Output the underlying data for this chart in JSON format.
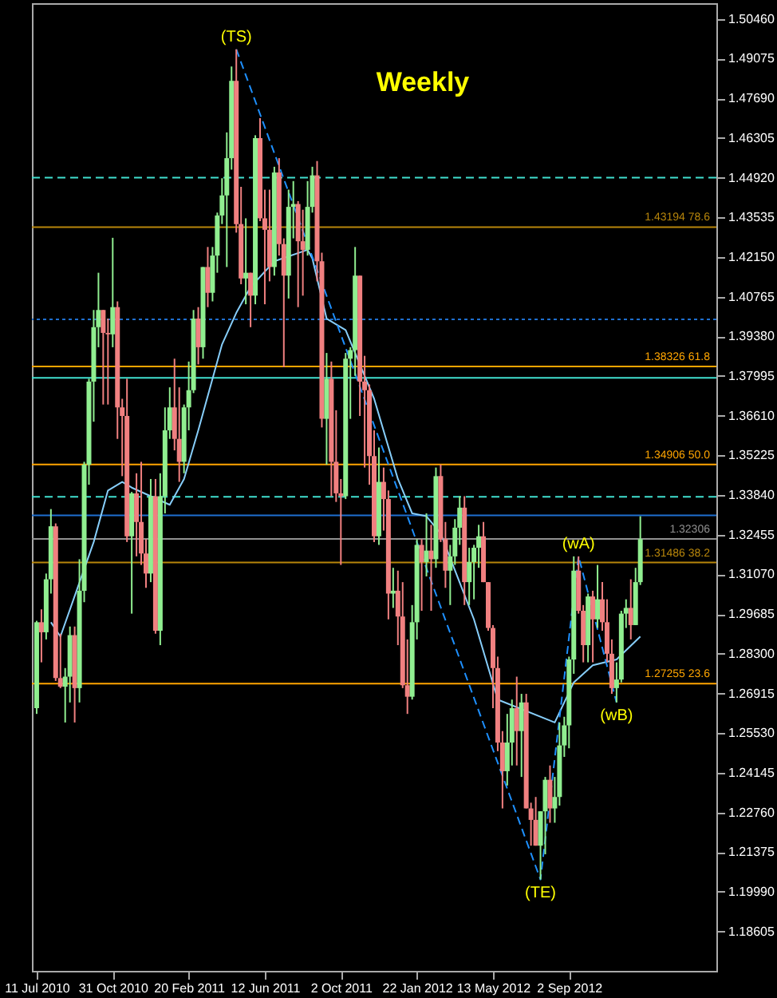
{
  "chart_data": {
    "type": "candlestick",
    "annotations": [
      "Weekly",
      {
        "text": "(TS)",
        "x": "2011-05-01",
        "y": 1.494
      },
      {
        "text": "(TE)",
        "x": "2012-07-22",
        "y": 1.2042
      },
      {
        "text": "(wA)",
        "x": "2012-09-16",
        "y": 1.317
      },
      {
        "text": "(wB)",
        "x": "2012-11-11",
        "y": 1.266
      }
    ],
    "x": [
      "2010-07-11",
      "2010-07-18",
      "2010-07-25",
      "2010-08-01",
      "2010-08-08",
      "2010-08-15",
      "2010-08-22",
      "2010-08-29",
      "2010-09-05",
      "2010-09-12",
      "2010-09-19",
      "2010-09-26",
      "2010-10-03",
      "2010-10-10",
      "2010-10-17",
      "2010-10-24",
      "2010-10-31",
      "2010-11-07",
      "2010-11-14",
      "2010-11-21",
      "2010-11-28",
      "2010-12-05",
      "2010-12-12",
      "2010-12-19",
      "2010-12-26",
      "2011-01-02",
      "2011-01-09",
      "2011-01-16",
      "2011-01-23",
      "2011-01-30",
      "2011-02-06",
      "2011-02-13",
      "2011-02-20",
      "2011-02-27",
      "2011-03-06",
      "2011-03-13",
      "2011-03-20",
      "2011-03-27",
      "2011-04-03",
      "2011-04-10",
      "2011-04-17",
      "2011-04-24",
      "2011-05-01",
      "2011-05-08",
      "2011-05-15",
      "2011-05-22",
      "2011-05-29",
      "2011-06-05",
      "2011-06-12",
      "2011-06-19",
      "2011-06-26",
      "2011-07-03",
      "2011-07-10",
      "2011-07-17",
      "2011-07-24",
      "2011-07-31",
      "2011-08-07",
      "2011-08-14",
      "2011-08-21",
      "2011-08-28",
      "2011-09-04",
      "2011-09-11",
      "2011-09-18",
      "2011-09-25",
      "2011-10-02",
      "2011-10-09",
      "2011-10-16",
      "2011-10-23",
      "2011-10-30",
      "2011-11-06",
      "2011-11-13",
      "2011-11-20",
      "2011-11-27",
      "2011-12-04",
      "2011-12-11",
      "2011-12-18",
      "2011-12-25",
      "2012-01-01",
      "2012-01-08",
      "2012-01-15",
      "2012-01-22",
      "2012-01-29",
      "2012-02-05",
      "2012-02-12",
      "2012-02-19",
      "2012-02-26",
      "2012-03-04",
      "2012-03-11",
      "2012-03-18",
      "2012-03-25",
      "2012-04-01",
      "2012-04-08",
      "2012-04-15",
      "2012-04-22",
      "2012-04-29",
      "2012-05-06",
      "2012-05-13",
      "2012-05-20",
      "2012-05-27",
      "2012-06-03",
      "2012-06-10",
      "2012-06-17",
      "2012-06-24",
      "2012-07-01",
      "2012-07-08",
      "2012-07-15",
      "2012-07-22",
      "2012-07-29",
      "2012-08-05",
      "2012-08-12",
      "2012-08-19",
      "2012-08-26",
      "2012-09-02",
      "2012-09-09",
      "2012-09-16",
      "2012-09-23",
      "2012-09-30",
      "2012-10-07",
      "2012-10-14",
      "2012-10-21",
      "2012-10-28",
      "2012-11-04",
      "2012-11-11",
      "2012-11-18",
      "2012-11-25",
      "2012-12-02",
      "2012-12-09",
      "2012-12-16"
    ],
    "ohlc": [
      [
        1.264,
        1.2945,
        1.262,
        1.294
      ],
      [
        1.294,
        1.2985,
        1.28,
        1.2905
      ],
      [
        1.2905,
        1.311,
        1.288,
        1.309
      ],
      [
        1.309,
        1.3335,
        1.304,
        1.3275
      ],
      [
        1.3275,
        1.3285,
        1.2735,
        1.2745
      ],
      [
        1.2745,
        1.29,
        1.271,
        1.2715
      ],
      [
        1.2715,
        1.278,
        1.259,
        1.275
      ],
      [
        1.275,
        1.2925,
        1.266,
        1.2895
      ],
      [
        1.2895,
        1.2925,
        1.259,
        1.271
      ],
      [
        1.271,
        1.316,
        1.266,
        1.305
      ],
      [
        1.305,
        1.35,
        1.301,
        1.349
      ],
      [
        1.349,
        1.379,
        1.342,
        1.378
      ],
      [
        1.378,
        1.403,
        1.364,
        1.397
      ],
      [
        1.397,
        1.416,
        1.39,
        1.403
      ],
      [
        1.403,
        1.403,
        1.37,
        1.395
      ],
      [
        1.395,
        1.4,
        1.37,
        1.3945
      ],
      [
        1.3945,
        1.4282,
        1.39,
        1.404
      ],
      [
        1.404,
        1.406,
        1.358,
        1.369
      ],
      [
        1.369,
        1.372,
        1.345,
        1.366
      ],
      [
        1.366,
        1.379,
        1.322,
        1.324
      ],
      [
        1.324,
        1.3395,
        1.297,
        1.339
      ],
      [
        1.339,
        1.346,
        1.317,
        1.329
      ],
      [
        1.329,
        1.35,
        1.314,
        1.318
      ],
      [
        1.318,
        1.323,
        1.306,
        1.311
      ],
      [
        1.311,
        1.344,
        1.308,
        1.338
      ],
      [
        1.338,
        1.344,
        1.29,
        1.291
      ],
      [
        1.291,
        1.346,
        1.286,
        1.338
      ],
      [
        1.338,
        1.369,
        1.332,
        1.361
      ],
      [
        1.361,
        1.376,
        1.358,
        1.369
      ],
      [
        1.369,
        1.386,
        1.354,
        1.358
      ],
      [
        1.358,
        1.376,
        1.343,
        1.35
      ],
      [
        1.35,
        1.37,
        1.346,
        1.369
      ],
      [
        1.369,
        1.385,
        1.361,
        1.375
      ],
      [
        1.375,
        1.403,
        1.374,
        1.4
      ],
      [
        1.4,
        1.404,
        1.384,
        1.39
      ],
      [
        1.39,
        1.418,
        1.386,
        1.418
      ],
      [
        1.418,
        1.425,
        1.404,
        1.409
      ],
      [
        1.409,
        1.425,
        1.406,
        1.422
      ],
      [
        1.422,
        1.437,
        1.416,
        1.436
      ],
      [
        1.436,
        1.449,
        1.433,
        1.443
      ],
      [
        1.443,
        1.465,
        1.418,
        1.456
      ],
      [
        1.456,
        1.488,
        1.452,
        1.483
      ],
      [
        1.483,
        1.494,
        1.43,
        1.433
      ],
      [
        1.433,
        1.446,
        1.412,
        1.414
      ],
      [
        1.414,
        1.435,
        1.405,
        1.416
      ],
      [
        1.416,
        1.416,
        1.397,
        1.408
      ],
      [
        1.408,
        1.464,
        1.405,
        1.463
      ],
      [
        1.463,
        1.47,
        1.434,
        1.435
      ],
      [
        1.435,
        1.445,
        1.405,
        1.431
      ],
      [
        1.431,
        1.445,
        1.413,
        1.418
      ],
      [
        1.418,
        1.453,
        1.415,
        1.451
      ],
      [
        1.451,
        1.456,
        1.422,
        1.426
      ],
      [
        1.426,
        1.428,
        1.383,
        1.415
      ],
      [
        1.415,
        1.445,
        1.407,
        1.439
      ],
      [
        1.439,
        1.448,
        1.428,
        1.44
      ],
      [
        1.44,
        1.441,
        1.404,
        1.427
      ],
      [
        1.427,
        1.438,
        1.408,
        1.424
      ],
      [
        1.424,
        1.448,
        1.422,
        1.439
      ],
      [
        1.439,
        1.453,
        1.437,
        1.45
      ],
      [
        1.45,
        1.455,
        1.413,
        1.42
      ],
      [
        1.42,
        1.423,
        1.362,
        1.365
      ],
      [
        1.365,
        1.388,
        1.349,
        1.379
      ],
      [
        1.379,
        1.385,
        1.338,
        1.35
      ],
      [
        1.35,
        1.368,
        1.336,
        1.339
      ],
      [
        1.339,
        1.344,
        1.314,
        1.338
      ],
      [
        1.338,
        1.388,
        1.337,
        1.386
      ],
      [
        1.386,
        1.39,
        1.365,
        1.389
      ],
      [
        1.389,
        1.425,
        1.38,
        1.415
      ],
      [
        1.415,
        1.415,
        1.366,
        1.378
      ],
      [
        1.378,
        1.387,
        1.348,
        1.375
      ],
      [
        1.375,
        1.377,
        1.342,
        1.352
      ],
      [
        1.352,
        1.361,
        1.322,
        1.324
      ],
      [
        1.324,
        1.355,
        1.321,
        1.343
      ],
      [
        1.343,
        1.348,
        1.326,
        1.337
      ],
      [
        1.337,
        1.34,
        1.295,
        1.304
      ],
      [
        1.304,
        1.313,
        1.299,
        1.305
      ],
      [
        1.305,
        1.312,
        1.286,
        1.296
      ],
      [
        1.296,
        1.308,
        1.271,
        1.272
      ],
      [
        1.272,
        1.288,
        1.262,
        1.268
      ],
      [
        1.268,
        1.3,
        1.267,
        1.294
      ],
      [
        1.294,
        1.323,
        1.288,
        1.321
      ],
      [
        1.321,
        1.323,
        1.298,
        1.315
      ],
      [
        1.315,
        1.332,
        1.31,
        1.319
      ],
      [
        1.319,
        1.328,
        1.298,
        1.316
      ],
      [
        1.316,
        1.348,
        1.313,
        1.345
      ],
      [
        1.345,
        1.349,
        1.322,
        1.323
      ],
      [
        1.323,
        1.329,
        1.306,
        1.312
      ],
      [
        1.312,
        1.321,
        1.3,
        1.317
      ],
      [
        1.317,
        1.33,
        1.314,
        1.327
      ],
      [
        1.327,
        1.338,
        1.321,
        1.334
      ],
      [
        1.334,
        1.338,
        1.3,
        1.308
      ],
      [
        1.308,
        1.32,
        1.3,
        1.315
      ],
      [
        1.315,
        1.321,
        1.302,
        1.32
      ],
      [
        1.32,
        1.328,
        1.313,
        1.324
      ],
      [
        1.324,
        1.329,
        1.308,
        1.308
      ],
      [
        1.308,
        1.308,
        1.291,
        1.292
      ],
      [
        1.292,
        1.293,
        1.264,
        1.278
      ],
      [
        1.278,
        1.282,
        1.249,
        1.252
      ],
      [
        1.252,
        1.256,
        1.229,
        1.242
      ],
      [
        1.242,
        1.262,
        1.237,
        1.252
      ],
      [
        1.252,
        1.267,
        1.244,
        1.264
      ],
      [
        1.264,
        1.275,
        1.244,
        1.256
      ],
      [
        1.256,
        1.269,
        1.24,
        1.266
      ],
      [
        1.266,
        1.269,
        1.229,
        1.229
      ],
      [
        1.229,
        1.231,
        1.216,
        1.225
      ],
      [
        1.225,
        1.233,
        1.216,
        1.216
      ],
      [
        1.216,
        1.228,
        1.2042,
        1.228
      ],
      [
        1.228,
        1.24,
        1.213,
        1.239
      ],
      [
        1.239,
        1.244,
        1.224,
        1.229
      ],
      [
        1.229,
        1.24,
        1.224,
        1.233
      ],
      [
        1.233,
        1.259,
        1.23,
        1.251
      ],
      [
        1.251,
        1.261,
        1.247,
        1.258
      ],
      [
        1.258,
        1.282,
        1.25,
        1.281
      ],
      [
        1.281,
        1.317,
        1.276,
        1.312
      ],
      [
        1.312,
        1.317,
        1.297,
        1.298
      ],
      [
        1.298,
        1.3,
        1.28,
        1.286
      ],
      [
        1.286,
        1.304,
        1.28,
        1.303
      ],
      [
        1.303,
        1.305,
        1.28,
        1.295
      ],
      [
        1.295,
        1.314,
        1.292,
        1.302
      ],
      [
        1.302,
        1.308,
        1.291,
        1.294
      ],
      [
        1.294,
        1.302,
        1.28,
        1.283
      ],
      [
        1.283,
        1.288,
        1.269,
        1.271
      ],
      [
        1.271,
        1.28,
        1.266,
        1.274
      ],
      [
        1.274,
        1.298,
        1.273,
        1.297
      ],
      [
        1.297,
        1.302,
        1.292,
        1.299
      ],
      [
        1.299,
        1.309,
        1.288,
        1.293
      ],
      [
        1.293,
        1.313,
        1.293,
        1.308
      ],
      [
        1.308,
        1.331,
        1.307,
        1.323
      ]
    ],
    "colors": [
      "#90ee90",
      "#f08080",
      "#90ee90",
      "#90ee90",
      "#f08080",
      "#f08080",
      "#90ee90",
      "#90ee90",
      "#f08080",
      "#90ee90",
      "#90ee90",
      "#90ee90",
      "#90ee90",
      "#90ee90",
      "#f08080",
      "#f08080",
      "#90ee90",
      "#f08080",
      "#f08080",
      "#f08080",
      "#90ee90",
      "#f08080",
      "#f08080",
      "#f08080",
      "#90ee90",
      "#f08080",
      "#90ee90",
      "#90ee90",
      "#90ee90",
      "#f08080",
      "#f08080",
      "#90ee90",
      "#90ee90",
      "#90ee90",
      "#f08080",
      "#90ee90",
      "#f08080",
      "#90ee90",
      "#90ee90",
      "#90ee90",
      "#90ee90",
      "#90ee90",
      "#f08080",
      "#f08080",
      "#90ee90",
      "#f08080",
      "#90ee90",
      "#f08080",
      "#f08080",
      "#f08080",
      "#90ee90",
      "#f08080",
      "#f08080",
      "#90ee90",
      "#90ee90",
      "#f08080",
      "#f08080",
      "#90ee90",
      "#90ee90",
      "#f08080",
      "#f08080",
      "#90ee90",
      "#f08080",
      "#f08080",
      "#f08080",
      "#90ee90",
      "#90ee90",
      "#90ee90",
      "#f08080",
      "#f08080",
      "#f08080",
      "#f08080",
      "#90ee90",
      "#f08080",
      "#f08080",
      "#90ee90",
      "#f08080",
      "#f08080",
      "#f08080",
      "#90ee90",
      "#90ee90",
      "#f08080",
      "#90ee90",
      "#f08080",
      "#90ee90",
      "#f08080",
      "#f08080",
      "#90ee90",
      "#90ee90",
      "#90ee90",
      "#f08080",
      "#90ee90",
      "#90ee90",
      "#90ee90",
      "#f08080",
      "#f08080",
      "#f08080",
      "#f08080",
      "#f08080",
      "#90ee90",
      "#90ee90",
      "#f08080",
      "#90ee90",
      "#f08080",
      "#f08080",
      "#f08080",
      "#90ee90",
      "#90ee90",
      "#f08080",
      "#90ee90",
      "#90ee90",
      "#90ee90",
      "#90ee90",
      "#90ee90",
      "#f08080",
      "#f08080",
      "#90ee90",
      "#f08080",
      "#90ee90",
      "#f08080",
      "#f08080",
      "#f08080",
      "#90ee90",
      "#90ee90",
      "#90ee90",
      "#f08080",
      "#90ee90",
      "#90ee90"
    ],
    "series": [
      {
        "type": "line",
        "color": "#87cefa",
        "line_style": "solid",
        "x": [
          "2010-08-01",
          "2010-08-15",
          "2010-10-03",
          "2010-10-24",
          "2010-11-14",
          "2010-11-28",
          "2011-01-23",
          "2011-02-13",
          "2011-03-06",
          "2011-04-10",
          "2011-05-01",
          "2011-05-22",
          "2011-06-26",
          "2011-08-14",
          "2011-08-21",
          "2011-09-11",
          "2011-10-09",
          "2011-11-20",
          "2011-12-25",
          "2012-01-15",
          "2012-02-05",
          "2012-02-26",
          "2012-04-15",
          "2012-05-20",
          "2012-08-12",
          "2012-09-09",
          "2012-10-07",
          "2012-11-11",
          "2012-12-16"
        ],
        "values": [
          1.294,
          1.289,
          1.322,
          1.34,
          1.343,
          1.341,
          1.335,
          1.344,
          1.361,
          1.391,
          1.402,
          1.411,
          1.42,
          1.424,
          1.421,
          1.4,
          1.396,
          1.372,
          1.344,
          1.332,
          1.331,
          1.325,
          1.295,
          1.267,
          1.259,
          1.273,
          1.279,
          1.281,
          1.289
        ]
      },
      {
        "type": "line",
        "color": "#1e90ff",
        "line_style": "dashed",
        "x": [
          "2011-05-01",
          "2012-07-22",
          "2012-09-16",
          "2012-11-11"
        ],
        "values": [
          1.494,
          1.2042,
          1.317,
          1.266
        ]
      }
    ],
    "ref_lines": [
      {
        "axis": "y",
        "value": 1.43194,
        "label": "1.43194  78.6",
        "color": "#b8860b",
        "line_style": "solid"
      },
      {
        "axis": "y",
        "value": 1.38326,
        "label": "1.38326  61.8",
        "color": "#ffa500",
        "line_style": "solid"
      },
      {
        "axis": "y",
        "value": 1.34906,
        "label": "1.34906  50.0",
        "color": "#ffa500",
        "line_style": "solid"
      },
      {
        "axis": "y",
        "value": 1.31486,
        "label": "1.31486  38.2",
        "color": "#b8860b",
        "line_style": "solid"
      },
      {
        "axis": "y",
        "value": 1.27255,
        "label": "1.27255  23.6",
        "color": "#ffa500",
        "line_style": "solid"
      },
      {
        "axis": "y",
        "value": 1.32306,
        "label": "1.32306",
        "color": "#909090",
        "line_style": "solid"
      },
      {
        "axis": "y",
        "value": 1.4492,
        "color": "#40e0d0",
        "line_style": "dashed"
      },
      {
        "axis": "y",
        "value": 1.3997,
        "color": "#1e6fd0",
        "line_style": "dotted"
      },
      {
        "axis": "y",
        "value": 1.3793,
        "color": "#40e0d0",
        "line_style": "solid"
      },
      {
        "axis": "y",
        "value": 1.3378,
        "color": "#40e0d0",
        "line_style": "dashed"
      },
      {
        "axis": "y",
        "value": 1.3313,
        "color": "#1e6fd0",
        "line_style": "solid"
      }
    ],
    "xlim": [
      "2010-07-04",
      "2013-04-07"
    ],
    "xticks": [
      {
        "value": "2010-07-11",
        "label": "11 Jul 2010"
      },
      {
        "value": "2010-10-31",
        "label": "31 Oct 2010"
      },
      {
        "value": "2011-02-20",
        "label": "20 Feb 2011"
      },
      {
        "value": "2011-06-12",
        "label": "12 Jun 2011"
      },
      {
        "value": "2011-10-02",
        "label": "2 Oct 2011"
      },
      {
        "value": "2012-01-22",
        "label": "22 Jan 2012"
      },
      {
        "value": "2012-05-13",
        "label": "13 May 2012"
      },
      {
        "value": "2012-09-02",
        "label": "2 Sep 2012"
      }
    ],
    "ylim": [
      1.1723,
      1.5101
    ],
    "yticks": [
      {
        "value": 1.5046,
        "label": "1.50460"
      },
      {
        "value": 1.49075,
        "label": "1.49075"
      },
      {
        "value": 1.4769,
        "label": "1.47690"
      },
      {
        "value": 1.46305,
        "label": "1.46305"
      },
      {
        "value": 1.4492,
        "label": "1.44920"
      },
      {
        "value": 1.43535,
        "label": "1.43535"
      },
      {
        "value": 1.4215,
        "label": "1.42150"
      },
      {
        "value": 1.40765,
        "label": "1.40765"
      },
      {
        "value": 1.3938,
        "label": "1.39380"
      },
      {
        "value": 1.37995,
        "label": "1.37995"
      },
      {
        "value": 1.3661,
        "label": "1.36610"
      },
      {
        "value": 1.35225,
        "label": "1.35225"
      },
      {
        "value": 1.3384,
        "label": "1.33840"
      },
      {
        "value": 1.32455,
        "label": "1.32455"
      },
      {
        "value": 1.3107,
        "label": "1.31070"
      },
      {
        "value": 1.29685,
        "label": "1.29685"
      },
      {
        "value": 1.283,
        "label": "1.28300"
      },
      {
        "value": 1.26915,
        "label": "1.26915"
      },
      {
        "value": 1.2553,
        "label": "1.25530"
      },
      {
        "value": 1.24145,
        "label": "1.24145"
      },
      {
        "value": 1.2276,
        "label": "1.22760"
      },
      {
        "value": 1.21375,
        "label": "1.21375"
      },
      {
        "value": 1.1999,
        "label": "1.19990"
      },
      {
        "value": 1.18605,
        "label": "1.18605"
      }
    ],
    "grid": false
  }
}
